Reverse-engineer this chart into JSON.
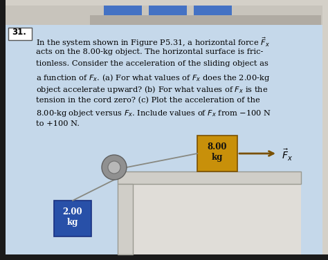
{
  "bg_color": "#c5d8ea",
  "page_bg": "#d4d0c8",
  "num_text": "31.",
  "box1_color": "#c8900a",
  "box2_color": "#2850a8",
  "top_bar_color1": "#4472c4",
  "top_bar_color2": "#5a5a5a",
  "text_lines": [
    "In the system shown in Figure P5.31, a horizontal force $\\vec{F}_x$",
    "acts on the 8.00-kg object. The horizontal surface is fric-",
    "tionless. Consider the acceleration of the sliding object as",
    "a function of $F_x$. (a) For what values of $F_x$ does the 2.00-kg",
    "object accelerate upward? (b) For what values of $F_x$ is the",
    "tension in the cord zero? (c) Plot the acceleration of the",
    "8.00-kg object versus $F_x$. Include values of $F_x$ from $-$100 N",
    "to +100 N."
  ],
  "figsize": [
    4.74,
    3.76
  ],
  "dpi": 100
}
